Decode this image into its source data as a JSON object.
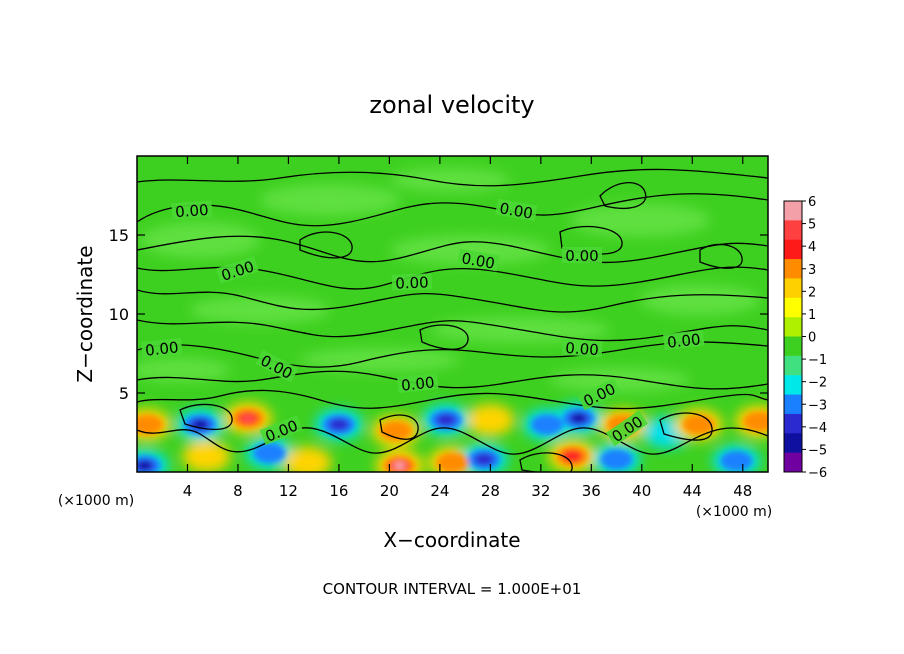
{
  "chart_data": {
    "type": "heatmap",
    "title": "zonal velocity",
    "xlabel": "X−coordinate",
    "ylabel": "Z−coordinate",
    "x_unit_left": "(×1000 m)",
    "x_unit_right": "(×1000 m)",
    "footer": "CONTOUR INTERVAL = 1.000E+01",
    "xlim": [
      0,
      50
    ],
    "ylim": [
      0,
      20
    ],
    "x_ticks": [
      "4",
      "8",
      "12",
      "16",
      "20",
      "24",
      "28",
      "32",
      "36",
      "40",
      "44",
      "48"
    ],
    "y_ticks": [
      "5",
      "10",
      "15"
    ],
    "x_tick_values": [
      4,
      8,
      12,
      16,
      20,
      24,
      28,
      32,
      36,
      40,
      44,
      48
    ],
    "y_tick_values": [
      5,
      10,
      15
    ],
    "colorbar": {
      "labels": [
        "6",
        "5",
        "4",
        "3",
        "2",
        "1",
        "0",
        "−1",
        "−2",
        "−3",
        "−4",
        "−5",
        "−6"
      ],
      "colors": [
        "#f4a0a8",
        "#ff4040",
        "#ff1a1a",
        "#ff8c00",
        "#ffd000",
        "#ffff00",
        "#aef000",
        "#3ed020",
        "#40e080",
        "#00e8e8",
        "#1a80ff",
        "#2a2ad0",
        "#1010a0",
        "#7000a0"
      ]
    },
    "contour_labels": [
      "0.00",
      "0.00",
      "0.00",
      "0.00",
      "0.00",
      "0.00",
      "0.00",
      "0.00",
      "0.00",
      "0.00",
      "0.00",
      "0.00",
      "0.00"
    ],
    "cells": [
      {
        "x": 0.8,
        "z": 3.0,
        "v": 3
      },
      {
        "x": 0.6,
        "z": 0.4,
        "v": -5
      },
      {
        "x": 5.0,
        "z": 3.0,
        "v": -5
      },
      {
        "x": 5.5,
        "z": 1.0,
        "v": 2
      },
      {
        "x": 8.8,
        "z": 3.4,
        "v": 5
      },
      {
        "x": 10.5,
        "z": 1.2,
        "v": -3
      },
      {
        "x": 13.5,
        "z": 0.6,
        "v": 2
      },
      {
        "x": 16.0,
        "z": 3.0,
        "v": -4
      },
      {
        "x": 20.5,
        "z": 2.6,
        "v": 3
      },
      {
        "x": 20.8,
        "z": 0.4,
        "v": 6
      },
      {
        "x": 24.5,
        "z": 3.3,
        "v": -4
      },
      {
        "x": 25.0,
        "z": 0.6,
        "v": 3
      },
      {
        "x": 28.0,
        "z": 3.3,
        "v": 2
      },
      {
        "x": 27.5,
        "z": 0.8,
        "v": -4
      },
      {
        "x": 32.5,
        "z": 3.0,
        "v": -3
      },
      {
        "x": 35.0,
        "z": 3.4,
        "v": -5
      },
      {
        "x": 34.5,
        "z": 1.0,
        "v": 4
      },
      {
        "x": 38.5,
        "z": 3.0,
        "v": 3
      },
      {
        "x": 38.0,
        "z": 0.8,
        "v": -3
      },
      {
        "x": 42.0,
        "z": 2.5,
        "v": -2
      },
      {
        "x": 44.5,
        "z": 3.0,
        "v": 3
      },
      {
        "x": 47.5,
        "z": 0.7,
        "v": -3
      },
      {
        "x": 49.3,
        "z": 3.2,
        "v": 3
      }
    ]
  }
}
